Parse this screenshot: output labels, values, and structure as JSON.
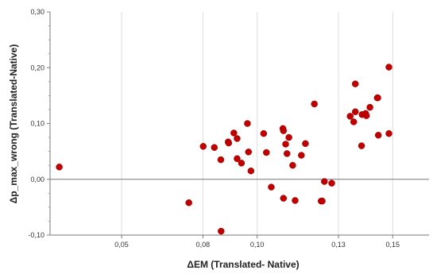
{
  "chart_data": {
    "type": "scatter",
    "title": "",
    "xlabel": "ΔEM (Translated- Native)",
    "ylabel": "Δp_max_wrong  (Translated-Native)",
    "xlim": [
      0.0236,
      0.1634
    ],
    "ylim": [
      -0.1,
      0.3
    ],
    "x_ticks": [
      0.05,
      0.08,
      0.1,
      0.13,
      0.15
    ],
    "x_tick_labels": [
      "0,05",
      "0,08",
      "0,10",
      "0,13",
      "0,15"
    ],
    "y_ticks": [
      -0.1,
      0.0,
      0.1,
      0.2,
      0.3
    ],
    "y_tick_labels": [
      "-0,10",
      "0,00",
      "0,10",
      "0,20",
      "0,30"
    ],
    "grid": true,
    "reference_line_y": 0,
    "marker_color": "#c00000",
    "series": [
      {
        "points": [
          [
            0.027,
            0.022
          ],
          [
            0.0748,
            -0.042
          ],
          [
            0.0801,
            0.059
          ],
          [
            0.0842,
            0.057
          ],
          [
            0.0866,
            0.035
          ],
          [
            0.0867,
            -0.093
          ],
          [
            0.0893,
            0.067
          ],
          [
            0.0895,
            0.065
          ],
          [
            0.0914,
            0.083
          ],
          [
            0.0926,
            0.073
          ],
          [
            0.0926,
            0.037
          ],
          [
            0.0942,
            0.029
          ],
          [
            0.0964,
            0.1
          ],
          [
            0.0968,
            0.049
          ],
          [
            0.0977,
            0.015
          ],
          [
            0.1024,
            0.082
          ],
          [
            0.1034,
            0.048
          ],
          [
            0.1052,
            -0.014
          ],
          [
            0.1095,
            0.091
          ],
          [
            0.1097,
            0.087
          ],
          [
            0.1097,
            -0.034
          ],
          [
            0.1105,
            0.063
          ],
          [
            0.111,
            0.046
          ],
          [
            0.1117,
            0.075
          ],
          [
            0.1131,
            0.025
          ],
          [
            0.114,
            -0.038
          ],
          [
            0.1163,
            0.043
          ],
          [
            0.1178,
            0.064
          ],
          [
            0.1211,
            0.135
          ],
          [
            0.1236,
            -0.039
          ],
          [
            0.124,
            -0.039
          ],
          [
            0.1248,
            -0.004
          ],
          [
            0.1275,
            -0.007
          ],
          [
            0.1343,
            0.113
          ],
          [
            0.1356,
            0.103
          ],
          [
            0.1362,
            0.121
          ],
          [
            0.1362,
            0.171
          ],
          [
            0.1385,
            0.06
          ],
          [
            0.1387,
            0.116
          ],
          [
            0.14,
            0.118
          ],
          [
            0.1403,
            0.114
          ],
          [
            0.1416,
            0.129
          ],
          [
            0.1443,
            0.146
          ],
          [
            0.1445,
            0.146
          ],
          [
            0.1447,
            0.079
          ],
          [
            0.1486,
            0.082
          ],
          [
            0.1486,
            0.201
          ]
        ]
      }
    ]
  }
}
